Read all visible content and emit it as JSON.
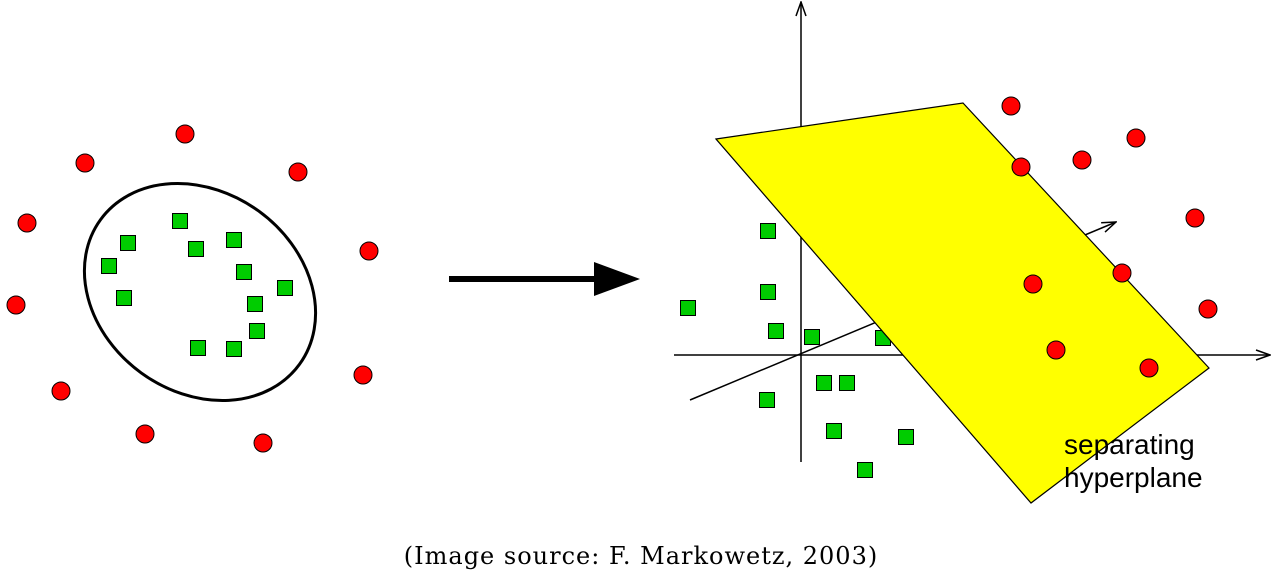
{
  "colors": {
    "positive_class": "#ff0000",
    "negative_class": "#00cc00",
    "hyperplane": "#ffff00",
    "ink": "#000000"
  },
  "labels": {
    "hyperplane_line1": "separating",
    "hyperplane_line2": "hyperplane"
  },
  "caption": "(Image source: F. Markowetz, 2003)"
}
